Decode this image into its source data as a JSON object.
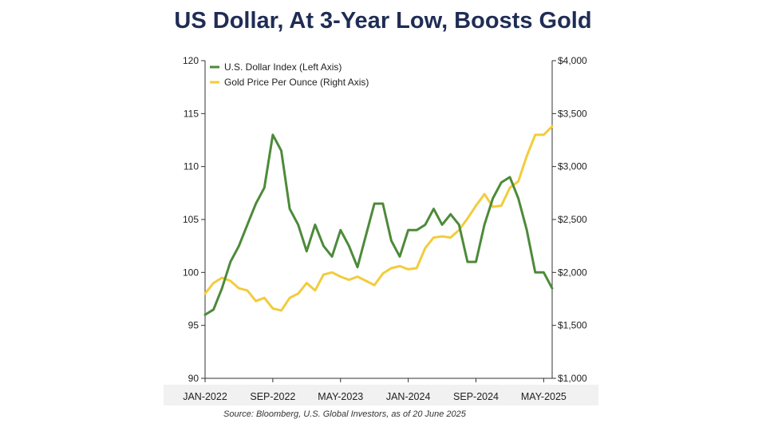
{
  "title": "US Dollar, At 3-Year Low, Boosts Gold",
  "source": "Source: Bloomberg, U.S. Global Investors, as of 20 June 2025",
  "colors": {
    "dollar": "#4d8a3a",
    "gold": "#f2cc3c",
    "axis": "#333333",
    "title": "#1f2d55"
  },
  "chart_data": {
    "type": "line",
    "title": "US Dollar, At 3-Year Low, Boosts Gold",
    "legend": [
      "U.S. Dollar Index (Left Axis)",
      "Gold Price Per Ounce (Right Axis)"
    ],
    "legend_position": "top-left",
    "x_tick_labels": [
      "JAN-2022",
      "SEP-2022",
      "MAY-2023",
      "JAN-2024",
      "SEP-2024",
      "MAY-2025"
    ],
    "x_ticks": [
      "2022-01",
      "2022-09",
      "2023-05",
      "2024-01",
      "2024-09",
      "2025-05"
    ],
    "x_range": [
      "2022-01",
      "2025-06"
    ],
    "y_left": {
      "ylim": [
        90,
        120
      ],
      "ticks": [
        90,
        95,
        100,
        105,
        110,
        115,
        120
      ],
      "tick_labels": [
        "90",
        "95",
        "100",
        "105",
        "110",
        "115",
        "120"
      ]
    },
    "y_right": {
      "ylim": [
        1000,
        4000
      ],
      "ticks": [
        1000,
        1500,
        2000,
        2500,
        3000,
        3500,
        4000
      ],
      "tick_labels": [
        "$1,000",
        "$1,500",
        "$2,000",
        "$2,500",
        "$3,000",
        "$3,500",
        "$4,000"
      ]
    },
    "grid": false,
    "series": [
      {
        "name": "U.S. Dollar Index (Left Axis)",
        "axis": "left",
        "x": [
          "2022-01",
          "2022-02",
          "2022-03",
          "2022-04",
          "2022-05",
          "2022-06",
          "2022-07",
          "2022-08",
          "2022-09",
          "2022-10",
          "2022-11",
          "2022-12",
          "2023-01",
          "2023-02",
          "2023-03",
          "2023-04",
          "2023-05",
          "2023-06",
          "2023-07",
          "2023-08",
          "2023-09",
          "2023-10",
          "2023-11",
          "2023-12",
          "2024-01",
          "2024-02",
          "2024-03",
          "2024-04",
          "2024-05",
          "2024-06",
          "2024-07",
          "2024-08",
          "2024-09",
          "2024-10",
          "2024-11",
          "2024-12",
          "2025-01",
          "2025-02",
          "2025-03",
          "2025-04",
          "2025-05",
          "2025-06"
        ],
        "values": [
          96.0,
          96.5,
          98.5,
          101.0,
          102.5,
          104.5,
          106.5,
          108.0,
          113.0,
          111.5,
          106.0,
          104.5,
          102.0,
          104.5,
          102.5,
          101.5,
          104.0,
          102.5,
          100.5,
          103.5,
          106.5,
          106.5,
          103.0,
          101.5,
          104.0,
          104.0,
          104.5,
          106.0,
          104.5,
          105.5,
          104.5,
          101.0,
          101.0,
          104.5,
          107.0,
          108.5,
          109.0,
          107.0,
          104.0,
          100.0,
          100.0,
          98.5
        ]
      },
      {
        "name": "Gold Price Per Ounce (Right Axis)",
        "axis": "right",
        "x": [
          "2022-01",
          "2022-02",
          "2022-03",
          "2022-04",
          "2022-05",
          "2022-06",
          "2022-07",
          "2022-08",
          "2022-09",
          "2022-10",
          "2022-11",
          "2022-12",
          "2023-01",
          "2023-02",
          "2023-03",
          "2023-04",
          "2023-05",
          "2023-06",
          "2023-07",
          "2023-08",
          "2023-09",
          "2023-10",
          "2023-11",
          "2023-12",
          "2024-01",
          "2024-02",
          "2024-03",
          "2024-04",
          "2024-05",
          "2024-06",
          "2024-07",
          "2024-08",
          "2024-09",
          "2024-10",
          "2024-11",
          "2024-12",
          "2025-01",
          "2025-02",
          "2025-03",
          "2025-04",
          "2025-05",
          "2025-06"
        ],
        "values": [
          1800,
          1900,
          1950,
          1920,
          1850,
          1830,
          1730,
          1760,
          1660,
          1640,
          1760,
          1800,
          1900,
          1830,
          1980,
          2000,
          1960,
          1930,
          1960,
          1920,
          1880,
          1990,
          2040,
          2060,
          2030,
          2040,
          2230,
          2330,
          2340,
          2330,
          2400,
          2510,
          2630,
          2740,
          2620,
          2630,
          2800,
          2860,
          3100,
          3300,
          3300,
          3380
        ]
      }
    ]
  }
}
